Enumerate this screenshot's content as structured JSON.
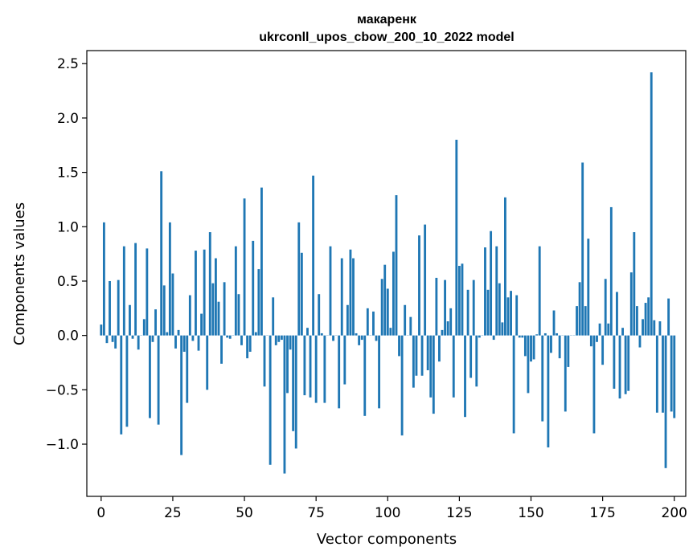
{
  "chart_data": {
    "type": "bar",
    "title_lines": [
      "макаренк",
      "ukrconll_upos_cbow_200_10_2022 model"
    ],
    "xlabel": "Vector components",
    "ylabel": "Components values",
    "xlim": [
      -5,
      204
    ],
    "ylim": [
      -1.48,
      2.62
    ],
    "x_ticks": [
      0,
      25,
      50,
      75,
      100,
      125,
      150,
      175,
      200
    ],
    "y_ticks": [
      -1.0,
      -0.5,
      0.0,
      0.5,
      1.0,
      1.5,
      2.0,
      2.5
    ],
    "x_tick_labels": [
      "0",
      "25",
      "50",
      "75",
      "100",
      "125",
      "150",
      "175",
      "200"
    ],
    "y_tick_labels": [
      "−1.0",
      "−0.5",
      "0.0",
      "0.5",
      "1.0",
      "1.5",
      "2.0",
      "2.5"
    ],
    "grid": false,
    "bar_color": "#1f77b4",
    "values": [
      0.1,
      1.04,
      -0.07,
      0.5,
      -0.06,
      -0.12,
      0.51,
      -0.91,
      0.82,
      -0.84,
      0.28,
      -0.03,
      0.85,
      -0.13,
      0.0,
      0.15,
      0.8,
      -0.76,
      -0.06,
      0.24,
      -0.82,
      1.51,
      0.46,
      0.03,
      1.04,
      0.57,
      -0.12,
      0.05,
      -1.1,
      -0.15,
      -0.62,
      0.37,
      -0.05,
      0.78,
      -0.14,
      0.2,
      0.79,
      -0.5,
      0.95,
      0.48,
      0.71,
      0.31,
      -0.26,
      0.49,
      -0.02,
      -0.03,
      0.0,
      0.82,
      0.38,
      -0.09,
      1.26,
      -0.21,
      -0.15,
      0.87,
      0.03,
      0.61,
      1.36,
      -0.47,
      0.0,
      -1.19,
      0.35,
      -0.09,
      -0.06,
      -0.04,
      -1.27,
      -0.53,
      -0.13,
      -0.88,
      -1.04,
      1.04,
      0.76,
      -0.55,
      0.07,
      -0.57,
      1.47,
      -0.62,
      0.38,
      0.02,
      -0.62,
      0.0,
      0.82,
      -0.05,
      0.0,
      -0.67,
      0.71,
      -0.45,
      0.28,
      0.79,
      0.71,
      0.02,
      -0.09,
      -0.04,
      -0.74,
      0.25,
      0.0,
      0.22,
      -0.05,
      -0.67,
      0.52,
      0.65,
      0.43,
      0.07,
      0.77,
      1.29,
      -0.19,
      -0.92,
      0.28,
      0.0,
      0.17,
      -0.48,
      -0.37,
      0.92,
      -0.37,
      1.02,
      -0.32,
      -0.57,
      -0.72,
      0.53,
      -0.24,
      0.05,
      0.51,
      0.13,
      0.25,
      -0.57,
      1.8,
      0.64,
      0.66,
      -0.75,
      0.42,
      -0.39,
      0.51,
      -0.47,
      -0.02,
      0.0,
      0.81,
      0.42,
      0.96,
      -0.04,
      0.82,
      0.48,
      0.12,
      1.27,
      0.35,
      0.41,
      -0.9,
      0.37,
      -0.02,
      -0.02,
      -0.19,
      -0.53,
      -0.24,
      -0.22,
      0.01,
      0.82,
      -0.79,
      0.02,
      -1.03,
      -0.16,
      0.23,
      0.02,
      -0.21,
      0.0,
      -0.7,
      -0.29,
      0.0,
      0.0,
      0.27,
      0.49,
      1.59,
      0.27,
      0.89,
      -0.1,
      -0.9,
      -0.06,
      0.11,
      -0.27,
      0.52,
      0.11,
      1.18,
      -0.49,
      0.4,
      -0.58,
      0.07,
      -0.54,
      -0.51,
      0.58,
      0.95,
      0.27,
      -0.11,
      0.15,
      0.3,
      0.35,
      2.42,
      0.14,
      -0.71,
      0.13,
      -0.71,
      -1.22,
      0.34,
      -0.7,
      -0.76
    ]
  }
}
